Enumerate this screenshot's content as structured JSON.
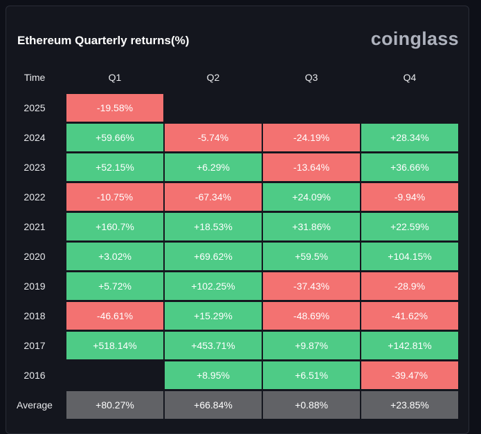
{
  "title": "Ethereum Quarterly returns(%)",
  "brand": "coinglass",
  "colors": {
    "background": "#14161e",
    "positive": "#4ecb86",
    "negative": "#f37271",
    "average": "#616266"
  },
  "chart_data": {
    "type": "heatmap",
    "corner_label": "Time",
    "columns": [
      "Q1",
      "Q2",
      "Q3",
      "Q4"
    ],
    "rows": [
      {
        "label": "2025",
        "values": [
          "-19.58%",
          "",
          "",
          ""
        ]
      },
      {
        "label": "2024",
        "values": [
          "+59.66%",
          "-5.74%",
          "-24.19%",
          "+28.34%"
        ]
      },
      {
        "label": "2023",
        "values": [
          "+52.15%",
          "+6.29%",
          "-13.64%",
          "+36.66%"
        ]
      },
      {
        "label": "2022",
        "values": [
          "-10.75%",
          "-67.34%",
          "+24.09%",
          "-9.94%"
        ]
      },
      {
        "label": "2021",
        "values": [
          "+160.7%",
          "+18.53%",
          "+31.86%",
          "+22.59%"
        ]
      },
      {
        "label": "2020",
        "values": [
          "+3.02%",
          "+69.62%",
          "+59.5%",
          "+104.15%"
        ]
      },
      {
        "label": "2019",
        "values": [
          "+5.72%",
          "+102.25%",
          "-37.43%",
          "-28.9%"
        ]
      },
      {
        "label": "2018",
        "values": [
          "-46.61%",
          "+15.29%",
          "-48.69%",
          "-41.62%"
        ]
      },
      {
        "label": "2017",
        "values": [
          "+518.14%",
          "+453.71%",
          "+9.87%",
          "+142.81%"
        ]
      },
      {
        "label": "2016",
        "values": [
          "",
          "+8.95%",
          "+6.51%",
          "-39.47%"
        ]
      }
    ],
    "average": {
      "label": "Average",
      "values": [
        "+80.27%",
        "+66.84%",
        "+0.88%",
        "+23.85%"
      ]
    }
  }
}
